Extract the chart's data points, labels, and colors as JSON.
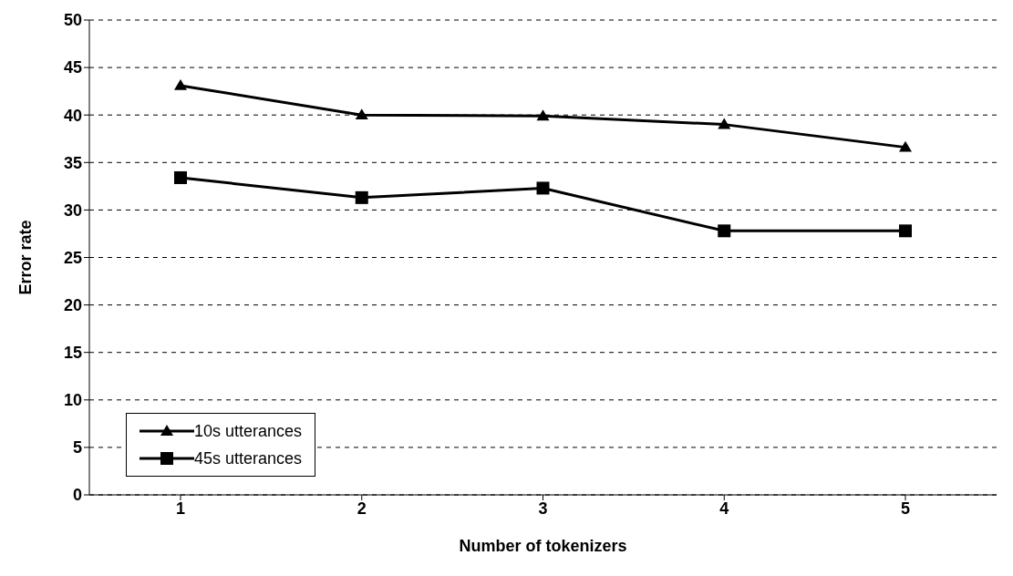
{
  "chart_data": {
    "type": "line",
    "xlabel": "Number of tokenizers",
    "ylabel": "Error rate",
    "categories": [
      "1",
      "2",
      "3",
      "4",
      "5"
    ],
    "series": [
      {
        "name": "10s utterances",
        "color": "#000000",
        "marker": "triangle",
        "values": [
          43.1,
          40,
          39.9,
          39,
          36.6
        ]
      },
      {
        "name": "45s utterances",
        "color": "#000000",
        "marker": "square",
        "values": [
          33.4,
          31.3,
          32.3,
          27.8,
          27.8
        ]
      }
    ],
    "ylim": [
      0,
      50
    ],
    "yticks": [
      0,
      5,
      10,
      15,
      20,
      25,
      30,
      35,
      40,
      45,
      50
    ],
    "grid": "y",
    "legend": "bottom left",
    "line_style": "solid"
  }
}
